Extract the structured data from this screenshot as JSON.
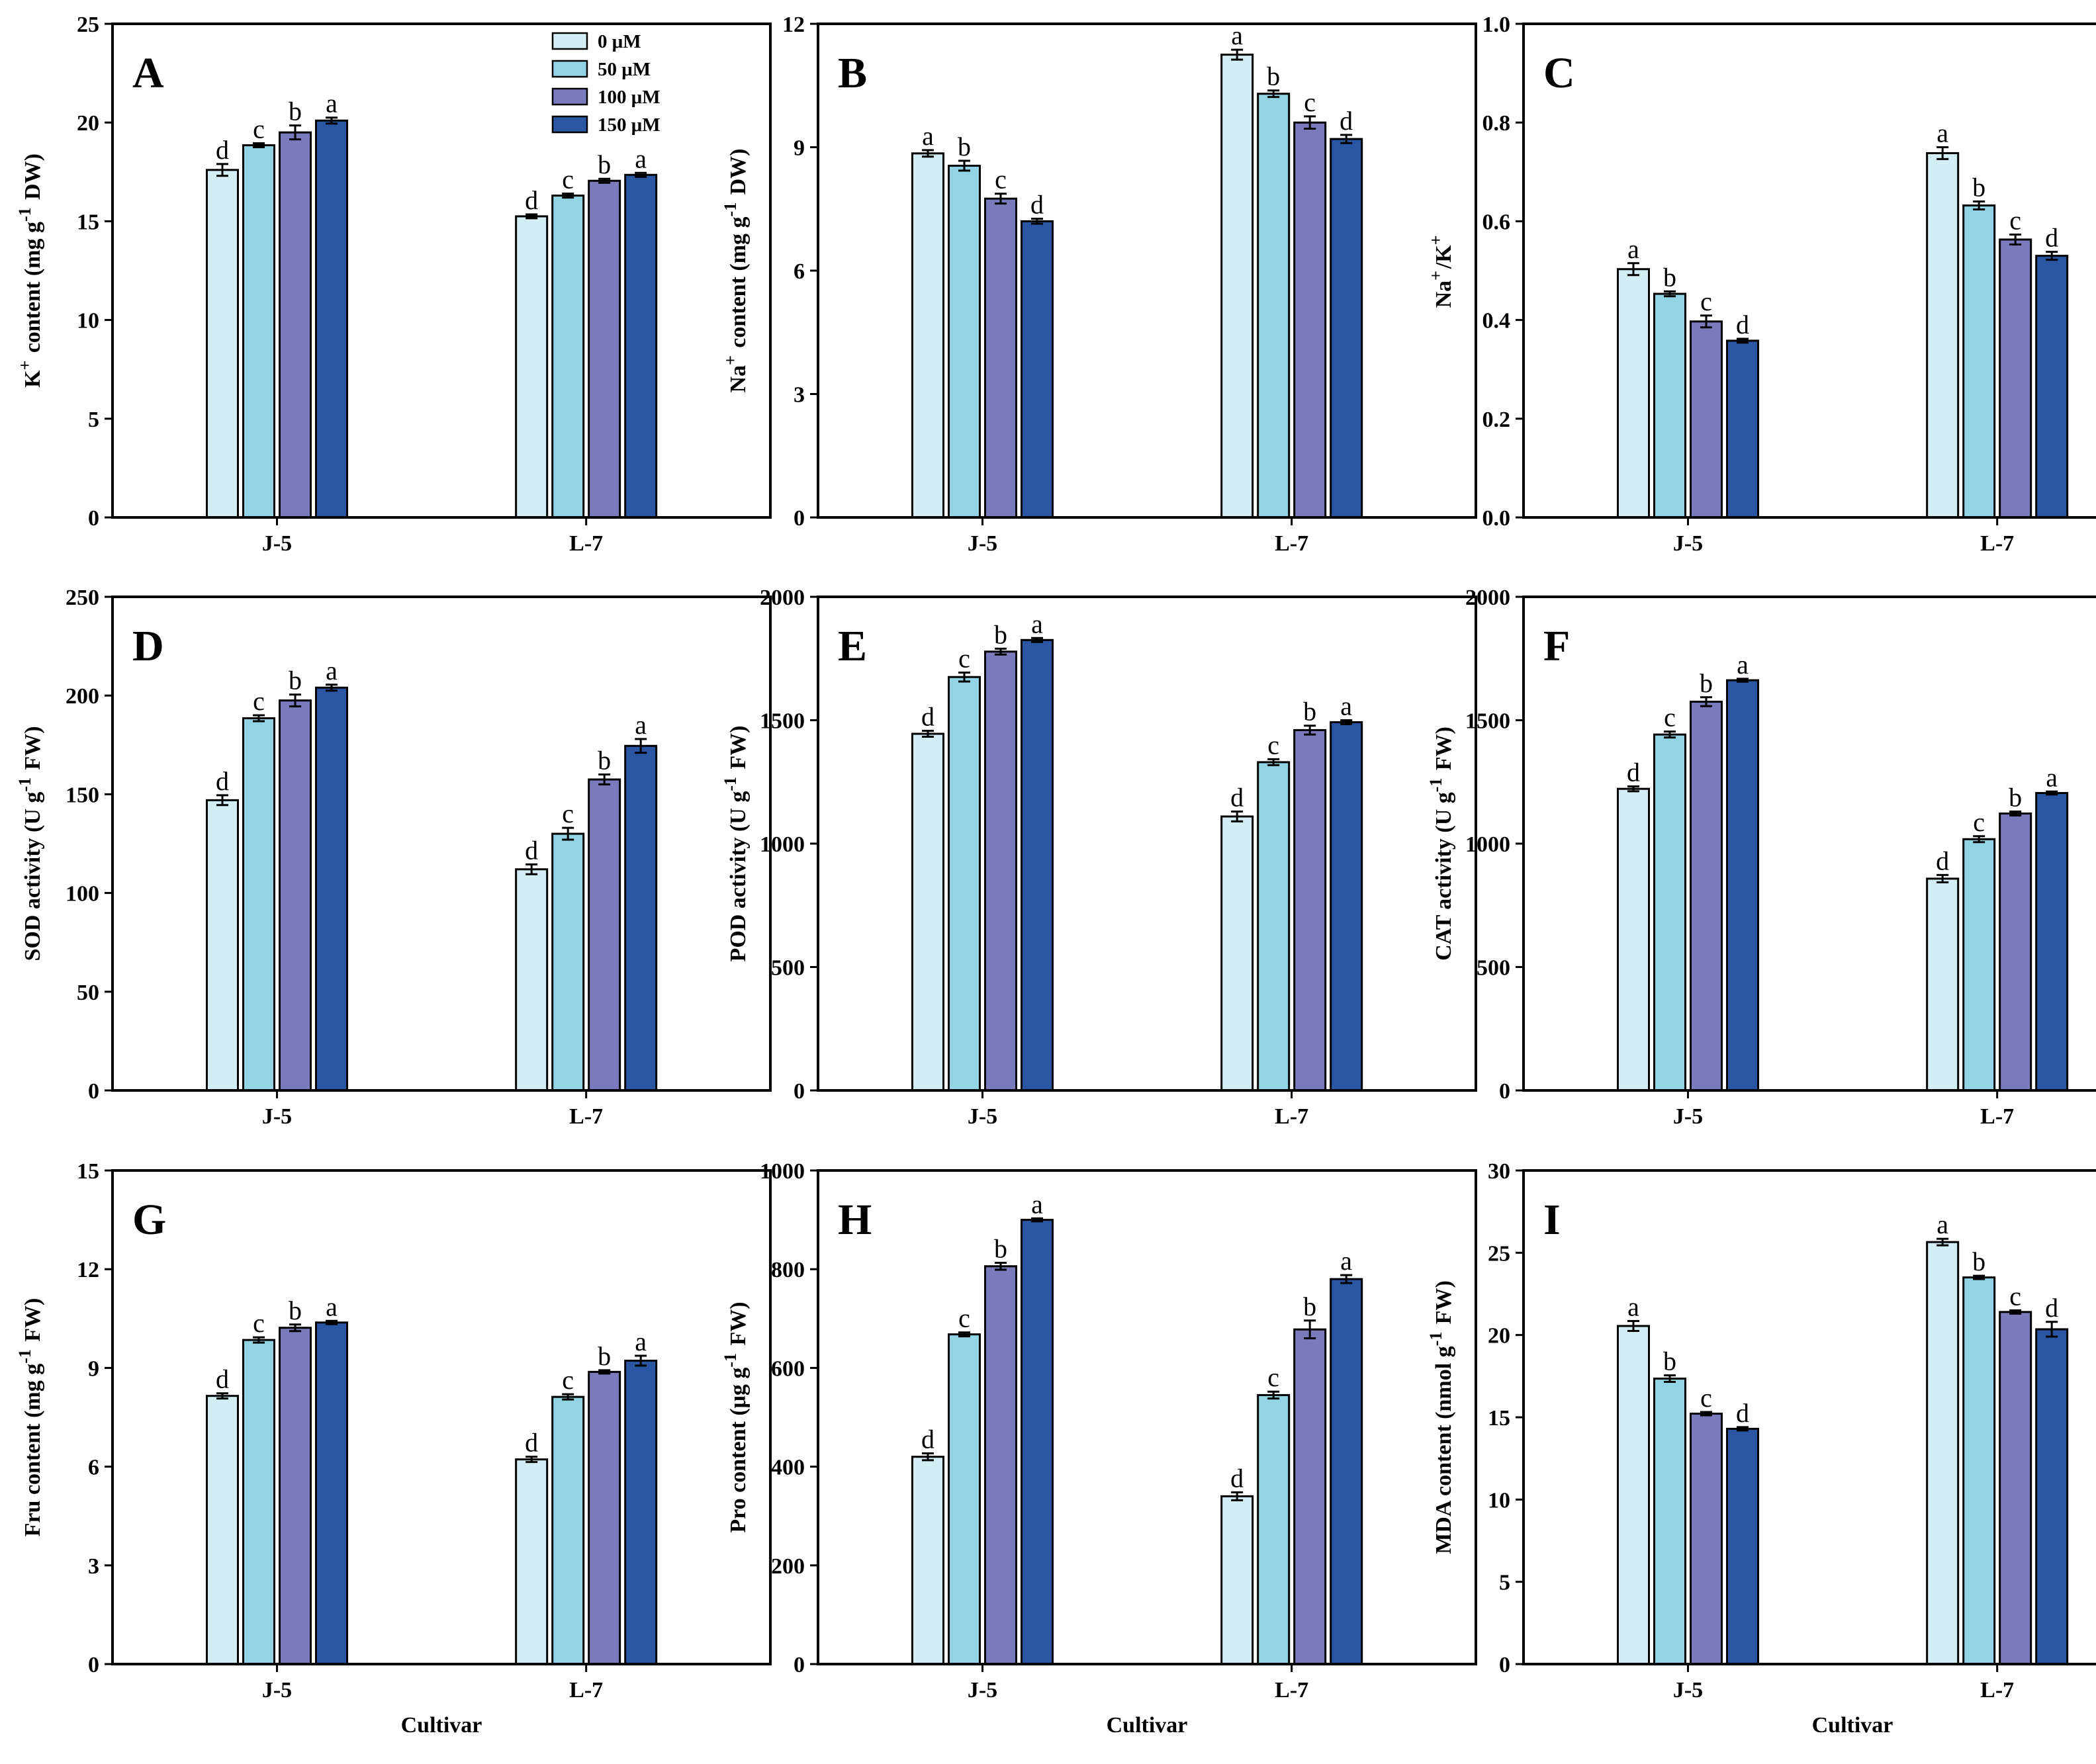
{
  "figure": {
    "x_axis_title": "Cultivar"
  },
  "colors": {
    "s0": "#d3edf4",
    "s1": "#92d4e3",
    "s2": "#7a7bbc",
    "s3": "#2b56a3"
  },
  "legend": [
    "0 μM",
    "50 μM",
    "100 μM",
    "150 μM"
  ],
  "chart_data": [
    {
      "id": "A",
      "type": "bar",
      "letter": "A",
      "ylabel": "K⁺ content (mg g⁻¹ DW)",
      "xlabel": "",
      "categories": [
        "J-5",
        "L-7"
      ],
      "ylim": [
        0,
        25
      ],
      "yticks": [
        0,
        5,
        10,
        15,
        20,
        25
      ],
      "tick_labels": [
        "0",
        "5",
        "10",
        "15",
        "20",
        "25"
      ],
      "series": [
        {
          "name": "0 μM",
          "values": [
            17.6,
            15.25
          ],
          "errors": [
            0.3,
            0.1
          ],
          "letters": [
            "d",
            "d"
          ]
        },
        {
          "name": "50 μM",
          "values": [
            18.85,
            16.3
          ],
          "errors": [
            0.1,
            0.1
          ],
          "letters": [
            "c",
            "c"
          ]
        },
        {
          "name": "100 μM",
          "values": [
            19.5,
            17.05
          ],
          "errors": [
            0.35,
            0.1
          ],
          "letters": [
            "b",
            "b"
          ]
        },
        {
          "name": "150 μM",
          "values": [
            20.1,
            17.35
          ],
          "errors": [
            0.15,
            0.1
          ],
          "letters": [
            "a",
            "a"
          ]
        }
      ]
    },
    {
      "id": "B",
      "type": "bar",
      "letter": "B",
      "ylabel": "Na⁺ content (mg g⁻¹ DW)",
      "xlabel": "",
      "categories": [
        "J-5",
        "L-7"
      ],
      "ylim": [
        0,
        12
      ],
      "yticks": [
        0,
        3,
        6,
        9,
        12
      ],
      "tick_labels": [
        "0",
        "3",
        "6",
        "9",
        "12"
      ],
      "series": [
        {
          "name": "0 μM",
          "values": [
            8.85,
            11.25
          ],
          "errors": [
            0.08,
            0.12
          ],
          "letters": [
            "a",
            "a"
          ]
        },
        {
          "name": "50 μM",
          "values": [
            8.55,
            10.3
          ],
          "errors": [
            0.12,
            0.08
          ],
          "letters": [
            "b",
            "b"
          ]
        },
        {
          "name": "100 μM",
          "values": [
            7.75,
            9.6
          ],
          "errors": [
            0.12,
            0.15
          ],
          "letters": [
            "c",
            "c"
          ]
        },
        {
          "name": "150 μM",
          "values": [
            7.2,
            9.2
          ],
          "errors": [
            0.06,
            0.1
          ],
          "letters": [
            "d",
            "d"
          ]
        }
      ]
    },
    {
      "id": "C",
      "type": "bar",
      "letter": "C",
      "ylabel": "Na⁺/K⁺",
      "xlabel": "",
      "categories": [
        "J-5",
        "L-7"
      ],
      "ylim": [
        0,
        1.0
      ],
      "yticks": [
        0,
        0.2,
        0.4,
        0.6,
        0.8,
        1.0
      ],
      "tick_labels": [
        "0.0",
        "0.2",
        "0.4",
        "0.6",
        "0.8",
        "1.0"
      ],
      "series": [
        {
          "name": "0 μM",
          "values": [
            0.503,
            0.738
          ],
          "errors": [
            0.012,
            0.012
          ],
          "letters": [
            "a",
            "a"
          ]
        },
        {
          "name": "50 μM",
          "values": [
            0.453,
            0.632
          ],
          "errors": [
            0.005,
            0.008
          ],
          "letters": [
            "b",
            "b"
          ]
        },
        {
          "name": "100 μM",
          "values": [
            0.397,
            0.563
          ],
          "errors": [
            0.012,
            0.01
          ],
          "letters": [
            "c",
            "c"
          ]
        },
        {
          "name": "150 μM",
          "values": [
            0.358,
            0.53
          ],
          "errors": [
            0.004,
            0.008
          ],
          "letters": [
            "d",
            "d"
          ]
        }
      ]
    },
    {
      "id": "D",
      "type": "bar",
      "letter": "D",
      "ylabel": "SOD activity (U g⁻¹ FW)",
      "xlabel": "",
      "categories": [
        "J-5",
        "L-7"
      ],
      "ylim": [
        0,
        250
      ],
      "yticks": [
        0,
        50,
        100,
        150,
        200,
        250
      ],
      "tick_labels": [
        "0",
        "50",
        "100",
        "150",
        "200",
        "250"
      ],
      "series": [
        {
          "name": "0 μM",
          "values": [
            147,
            112
          ],
          "errors": [
            2.5,
            2.5
          ],
          "letters": [
            "d",
            "d"
          ]
        },
        {
          "name": "50 μM",
          "values": [
            188.5,
            130
          ],
          "errors": [
            1.5,
            3
          ],
          "letters": [
            "c",
            "c"
          ]
        },
        {
          "name": "100 μM",
          "values": [
            197.5,
            157.5
          ],
          "errors": [
            3,
            2.5
          ],
          "letters": [
            "b",
            "b"
          ]
        },
        {
          "name": "150 μM",
          "values": [
            204,
            174.5
          ],
          "errors": [
            1.5,
            3.5
          ],
          "letters": [
            "a",
            "a"
          ]
        }
      ]
    },
    {
      "id": "E",
      "type": "bar",
      "letter": "E",
      "ylabel": "POD activity (U g⁻¹ FW)",
      "xlabel": "",
      "categories": [
        "J-5",
        "L-7"
      ],
      "ylim": [
        0,
        2000
      ],
      "yticks": [
        0,
        500,
        1000,
        1500,
        2000
      ],
      "tick_labels": [
        "0",
        "500",
        "1000",
        "1500",
        "2000"
      ],
      "series": [
        {
          "name": "0 μM",
          "values": [
            1445,
            1110
          ],
          "errors": [
            12,
            20
          ],
          "letters": [
            "d",
            "d"
          ]
        },
        {
          "name": "50 μM",
          "values": [
            1675,
            1330
          ],
          "errors": [
            18,
            12
          ],
          "letters": [
            "c",
            "c"
          ]
        },
        {
          "name": "100 μM",
          "values": [
            1778,
            1460
          ],
          "errors": [
            12,
            18
          ],
          "letters": [
            "b",
            "b"
          ]
        },
        {
          "name": "150 μM",
          "values": [
            1825,
            1492
          ],
          "errors": [
            8,
            8
          ],
          "letters": [
            "a",
            "a"
          ]
        }
      ]
    },
    {
      "id": "F",
      "type": "bar",
      "letter": "F",
      "ylabel": "CAT activity (U g⁻¹ FW)",
      "xlabel": "",
      "categories": [
        "J-5",
        "L-7"
      ],
      "ylim": [
        0,
        2000
      ],
      "yticks": [
        0,
        500,
        1000,
        1500,
        2000
      ],
      "tick_labels": [
        "0",
        "500",
        "1000",
        "1500",
        "2000"
      ],
      "series": [
        {
          "name": "0 μM",
          "values": [
            1222,
            858
          ],
          "errors": [
            10,
            15
          ],
          "letters": [
            "d",
            "d"
          ]
        },
        {
          "name": "50 μM",
          "values": [
            1442,
            1018
          ],
          "errors": [
            12,
            12
          ],
          "letters": [
            "c",
            "c"
          ]
        },
        {
          "name": "100 μM",
          "values": [
            1575,
            1122
          ],
          "errors": [
            18,
            8
          ],
          "letters": [
            "b",
            "b"
          ]
        },
        {
          "name": "150 μM",
          "values": [
            1662,
            1205
          ],
          "errors": [
            6,
            6
          ],
          "letters": [
            "a",
            "a"
          ]
        }
      ]
    },
    {
      "id": "G",
      "type": "bar",
      "letter": "G",
      "ylabel": "Fru content (mg g⁻¹ FW)",
      "xlabel": "Cultivar",
      "categories": [
        "J-5",
        "L-7"
      ],
      "ylim": [
        0,
        15
      ],
      "yticks": [
        0,
        3,
        6,
        9,
        12,
        15
      ],
      "tick_labels": [
        "0",
        "3",
        "6",
        "9",
        "12",
        "15"
      ],
      "series": [
        {
          "name": "0 μM",
          "values": [
            8.15,
            6.22
          ],
          "errors": [
            0.08,
            0.08
          ],
          "letters": [
            "d",
            "d"
          ]
        },
        {
          "name": "50 μM",
          "values": [
            9.85,
            8.12
          ],
          "errors": [
            0.08,
            0.08
          ],
          "letters": [
            "c",
            "c"
          ]
        },
        {
          "name": "100 μM",
          "values": [
            10.22,
            8.88
          ],
          "errors": [
            0.1,
            0.05
          ],
          "letters": [
            "b",
            "b"
          ]
        },
        {
          "name": "150 μM",
          "values": [
            10.38,
            9.22
          ],
          "errors": [
            0.05,
            0.15
          ],
          "letters": [
            "a",
            "a"
          ]
        }
      ]
    },
    {
      "id": "H",
      "type": "bar",
      "letter": "H",
      "ylabel": "Pro content (μg g⁻¹ FW)",
      "xlabel": "Cultivar",
      "categories": [
        "J-5",
        "L-7"
      ],
      "ylim": [
        0,
        1000
      ],
      "yticks": [
        0,
        200,
        400,
        600,
        800,
        1000
      ],
      "tick_labels": [
        "0",
        "200",
        "400",
        "600",
        "800",
        "1000"
      ],
      "series": [
        {
          "name": "0 μM",
          "values": [
            420,
            340
          ],
          "errors": [
            7,
            8
          ],
          "letters": [
            "d",
            "d"
          ]
        },
        {
          "name": "50 μM",
          "values": [
            668,
            545
          ],
          "errors": [
            4,
            7
          ],
          "letters": [
            "c",
            "c"
          ]
        },
        {
          "name": "100 μM",
          "values": [
            806,
            678
          ],
          "errors": [
            7,
            18
          ],
          "letters": [
            "b",
            "b"
          ]
        },
        {
          "name": "150 μM",
          "values": [
            900,
            780
          ],
          "errors": [
            3,
            8
          ],
          "letters": [
            "a",
            "a"
          ]
        }
      ]
    },
    {
      "id": "I",
      "type": "bar",
      "letter": "I",
      "ylabel": "MDA content (nmol g⁻¹ FW)",
      "xlabel": "Cultivar",
      "categories": [
        "J-5",
        "L-7"
      ],
      "ylim": [
        0,
        30
      ],
      "yticks": [
        0,
        5,
        10,
        15,
        20,
        25,
        30
      ],
      "tick_labels": [
        "0",
        "5",
        "10",
        "15",
        "20",
        "25",
        "30"
      ],
      "series": [
        {
          "name": "0 μM",
          "values": [
            20.55,
            25.65
          ],
          "errors": [
            0.3,
            0.2
          ],
          "letters": [
            "a",
            "a"
          ]
        },
        {
          "name": "50 μM",
          "values": [
            17.35,
            23.5
          ],
          "errors": [
            0.2,
            0.1
          ],
          "letters": [
            "b",
            "b"
          ]
        },
        {
          "name": "100 μM",
          "values": [
            15.22,
            21.4
          ],
          "errors": [
            0.1,
            0.1
          ],
          "letters": [
            "c",
            "c"
          ]
        },
        {
          "name": "150 μM",
          "values": [
            14.3,
            20.35
          ],
          "errors": [
            0.1,
            0.45
          ],
          "letters": [
            "d",
            "d"
          ]
        }
      ]
    }
  ]
}
